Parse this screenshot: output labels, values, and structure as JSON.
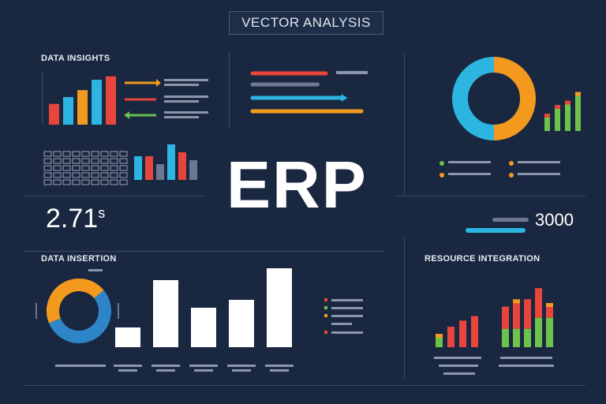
{
  "header": {
    "title": "VECTOR ANALYSIS"
  },
  "center": {
    "label": "ERP"
  },
  "metric": {
    "value": "2.71",
    "unit": "s"
  },
  "kpi_right": {
    "value": "3000"
  },
  "sections": {
    "data_insights": "DATA INSIGHTS",
    "data_insertion": "DATA INSERTION",
    "resource_integration": "RESOURCE INTEGRATION"
  },
  "colors": {
    "background": "#1a2740",
    "red": "#e8453c",
    "blue": "#2bb5e0",
    "orange": "#f39a1e",
    "green": "#6cc24a",
    "grey": "#6b7890",
    "white": "#ffffff"
  },
  "chart_data": [
    {
      "type": "bar",
      "name_hint": "data-insights-top-bars",
      "values": [
        3,
        4,
        5,
        6.5,
        7
      ],
      "colors": [
        "#e8453c",
        "#2bb5e0",
        "#f39a1e",
        "#2bb5e0",
        "#e8453c"
      ],
      "ylim": [
        0,
        8
      ]
    },
    {
      "type": "bar",
      "name_hint": "data-insights-mid-bars",
      "values": [
        3,
        3,
        2,
        4.5,
        3.5,
        2.5
      ],
      "colors": [
        "#2bb5e0",
        "#e8453c",
        "#6b7890",
        "#2bb5e0",
        "#e8453c",
        "#6b7890"
      ],
      "ylim": [
        0,
        5
      ]
    },
    {
      "type": "line",
      "name_hint": "horizontal-bars",
      "values": [
        0.62,
        0.55,
        0.75,
        0.92
      ],
      "colors": [
        "#e8453c",
        "#6b7890",
        "#2bb5e0",
        "#f39a1e"
      ]
    },
    {
      "type": "pie",
      "name_hint": "top-right-donut",
      "values": [
        50,
        50
      ],
      "colors": [
        "#2bb5e0",
        "#f39a1e"
      ]
    },
    {
      "type": "bar",
      "name_hint": "top-right-stacked",
      "values": [
        2,
        3,
        3.5,
        4.5
      ],
      "colors": [
        "#6cc24a",
        "#6cc24a",
        "#6cc24a",
        "#f39a1e"
      ]
    },
    {
      "type": "pie",
      "name_hint": "data-insertion-donut",
      "values": [
        55,
        45
      ],
      "colors": [
        "#2e86c8",
        "#f39a1e"
      ]
    },
    {
      "type": "bar",
      "name_hint": "data-insertion-bars",
      "values": [
        2.5,
        8.5,
        5,
        6,
        10
      ],
      "colors": [
        "#ffffff",
        "#ffffff",
        "#ffffff",
        "#ffffff",
        "#ffffff"
      ],
      "ylim": [
        0,
        10
      ]
    },
    {
      "type": "bar",
      "name_hint": "resource-integration-small",
      "values": [
        1.5,
        2.3,
        3,
        3.5
      ],
      "colors": [
        "#6cc24a",
        "#e8453c",
        "#e8453c",
        "#e8453c"
      ],
      "ylim": [
        0,
        8
      ]
    },
    {
      "type": "bar",
      "name_hint": "resource-integration-large",
      "series": [
        {
          "values": [
            2.5,
            2.5,
            2.5,
            4,
            4
          ]
        },
        {
          "values": [
            3,
            4,
            4,
            4,
            2
          ]
        }
      ],
      "stack_colors": [
        "#6cc24a",
        "#e8453c"
      ],
      "top_colors": [
        "#e8453c",
        "#f39a1e",
        "#e8453c",
        "#e8453c",
        "#f39a1e"
      ],
      "ylim": [
        0,
        9
      ]
    }
  ]
}
